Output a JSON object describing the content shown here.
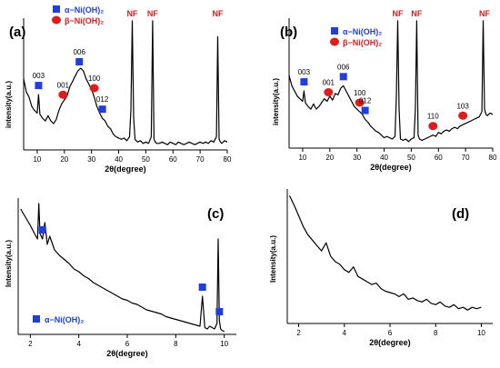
{
  "colors": {
    "alpha_marker": "#1f3de0",
    "beta_marker": "#e11b1b",
    "nf_label": "#e11b1b",
    "trace": "#000000",
    "axis": "#000000"
  },
  "chart_data": [
    {
      "panel": "(a)",
      "type": "line",
      "xlabel": "2θ(degree)",
      "ylabel": "intensity(a.u.)",
      "xlim": [
        5,
        80
      ],
      "xticks": [
        10,
        20,
        30,
        40,
        50,
        60,
        70,
        80
      ],
      "ylim": [
        0,
        100
      ],
      "yticks_shown": false,
      "legend": {
        "placement": "top-left",
        "entries": [
          {
            "marker": "square",
            "label": "α−Ni(OH)₂"
          },
          {
            "marker": "circle",
            "label": "β−Ni(OH)₂"
          }
        ]
      },
      "series": {
        "x": [
          5,
          6,
          7,
          8,
          9,
          10,
          10.5,
          11,
          12,
          13,
          14,
          15,
          16,
          17,
          18,
          19,
          20,
          21,
          22,
          23,
          24,
          25,
          26,
          27,
          28,
          29,
          30,
          31,
          32,
          33,
          34,
          35,
          36,
          37,
          38,
          39,
          40,
          41,
          42,
          43,
          44,
          44.5,
          45,
          45.5,
          46,
          47,
          48,
          49,
          50,
          51,
          52,
          52.5,
          53,
          53.5,
          54,
          55,
          56,
          57,
          58,
          59,
          60,
          61,
          62,
          63,
          64,
          65,
          66,
          67,
          68,
          69,
          70,
          71,
          72,
          73,
          74,
          75,
          76,
          76.5,
          77,
          77.5,
          78,
          79,
          80
        ],
        "y": [
          54,
          44,
          40,
          33,
          30,
          28,
          42,
          27,
          24,
          22,
          26,
          22,
          20,
          23,
          30,
          35,
          38,
          41,
          48,
          52,
          56,
          60,
          62,
          60,
          54,
          50,
          46,
          40,
          33,
          28,
          24,
          22,
          18,
          16,
          12,
          10,
          9,
          8,
          9,
          7,
          10,
          30,
          98,
          25,
          8,
          6,
          7,
          5,
          6,
          5,
          10,
          98,
          8,
          6,
          5,
          5,
          6,
          5,
          4,
          6,
          5,
          4,
          6,
          5,
          4,
          5,
          6,
          5,
          4,
          5,
          6,
          5,
          6,
          5,
          7,
          6,
          10,
          86,
          8,
          6,
          5,
          7,
          6
        ]
      },
      "annotations": [
        {
          "text": "003",
          "x": 10.5,
          "marker": "square"
        },
        {
          "text": "001",
          "x": 19.5,
          "marker": "circle"
        },
        {
          "text": "006",
          "x": 25.5,
          "marker": "square"
        },
        {
          "text": "100",
          "x": 31,
          "marker": "circle"
        },
        {
          "text": "012",
          "x": 34,
          "marker": "square"
        },
        {
          "text": "NF",
          "x": 45
        },
        {
          "text": "NF",
          "x": 52.5
        },
        {
          "text": "NF",
          "x": 76.5
        }
      ]
    },
    {
      "panel": "(b)",
      "type": "line",
      "xlabel": "2θ(degree)",
      "ylabel": "intensity(a.u.)",
      "xlim": [
        5,
        80
      ],
      "xticks": [
        10,
        20,
        30,
        40,
        50,
        60,
        70,
        80
      ],
      "ylim": [
        0,
        100
      ],
      "yticks_shown": false,
      "legend": {
        "placement": "top-center",
        "entries": [
          {
            "marker": "square",
            "label": "α−Ni(OH)₂"
          },
          {
            "marker": "circle",
            "label": "β−Ni(OH)₂"
          }
        ]
      },
      "series": {
        "x": [
          5,
          6,
          7,
          8,
          9,
          10,
          10.5,
          11,
          12,
          13,
          14,
          15,
          16,
          17,
          18,
          19,
          20,
          21,
          22,
          23,
          24,
          25,
          26,
          27,
          28,
          29,
          30,
          31,
          32,
          33,
          34,
          35,
          36,
          37,
          38,
          39,
          40,
          41,
          42,
          43,
          44,
          44.5,
          45,
          45.5,
          46,
          47,
          48,
          49,
          50,
          51,
          51.5,
          52,
          52.5,
          53,
          54,
          55,
          56,
          57,
          58,
          59,
          60,
          61,
          62,
          63,
          64,
          65,
          66,
          67,
          68,
          69,
          70,
          71,
          72,
          73,
          74,
          75,
          76,
          76.5,
          77,
          77.5,
          78,
          79,
          80
        ],
        "y": [
          56,
          48,
          44,
          40,
          38,
          36,
          44,
          35,
          32,
          30,
          34,
          30,
          32,
          35,
          38,
          36,
          40,
          37,
          42,
          41,
          46,
          48,
          44,
          40,
          36,
          32,
          30,
          28,
          26,
          22,
          20,
          17,
          15,
          13,
          12,
          10,
          8,
          9,
          8,
          7,
          9,
          40,
          98,
          30,
          7,
          6,
          7,
          5,
          7,
          8,
          30,
          98,
          10,
          7,
          6,
          7,
          8,
          9,
          10,
          9,
          12,
          11,
          13,
          14,
          13,
          15,
          16,
          15,
          17,
          18,
          19,
          20,
          21,
          22,
          23,
          24,
          28,
          98,
          30,
          26,
          25,
          27,
          26
        ]
      },
      "annotations": [
        {
          "text": "003",
          "x": 10.5,
          "marker": "square"
        },
        {
          "text": "001",
          "x": 19.5,
          "marker": "circle"
        },
        {
          "text": "006",
          "x": 25,
          "marker": "square"
        },
        {
          "text": "100",
          "x": 31,
          "marker": "circle"
        },
        {
          "text": "012",
          "x": 33,
          "marker": "square"
        },
        {
          "text": "110",
          "x": 58,
          "marker": "circle"
        },
        {
          "text": "103",
          "x": 69,
          "marker": "circle"
        },
        {
          "text": "NF",
          "x": 45
        },
        {
          "text": "NF",
          "x": 52
        },
        {
          "text": "NF",
          "x": 77
        }
      ]
    },
    {
      "panel": "(c)",
      "type": "line",
      "xlabel": "2θ(degree)",
      "ylabel": "Intensity(a.u.)",
      "xlim": [
        1.5,
        10.5
      ],
      "xticks": [
        2,
        4,
        6,
        8,
        10
      ],
      "ylim": [
        0,
        100
      ],
      "yticks_shown": false,
      "legend": {
        "placement": "bottom-left",
        "entries": [
          {
            "marker": "square",
            "label": "α−Ni(OH)₂"
          }
        ]
      },
      "series": {
        "x": [
          1.6,
          1.8,
          2.0,
          2.2,
          2.3,
          2.35,
          2.4,
          2.5,
          2.6,
          2.7,
          2.8,
          3.0,
          3.2,
          3.4,
          3.6,
          3.8,
          4.0,
          4.2,
          4.4,
          4.6,
          4.8,
          5.0,
          5.2,
          5.4,
          5.6,
          5.8,
          6.0,
          6.2,
          6.4,
          6.6,
          6.8,
          7.0,
          7.2,
          7.4,
          7.6,
          7.8,
          8.0,
          8.2,
          8.4,
          8.6,
          8.8,
          9.0,
          9.1,
          9.2,
          9.3,
          9.4,
          9.5,
          9.6,
          9.7,
          9.75,
          9.8,
          9.85,
          9.9,
          10.0
        ],
        "y": [
          92,
          86,
          80,
          73,
          70,
          96,
          74,
          70,
          82,
          66,
          72,
          62,
          58,
          55,
          52,
          48,
          46,
          43,
          41,
          38,
          36,
          34,
          32,
          30,
          28,
          26,
          25,
          23,
          22,
          20,
          18,
          17,
          16,
          15,
          13,
          12,
          11,
          10,
          9,
          8,
          7,
          6,
          28,
          5,
          4,
          6,
          5,
          4,
          8,
          70,
          10,
          4,
          3,
          2
        ]
      },
      "annotations": [
        {
          "text": "",
          "x": 2.5,
          "marker": "square"
        },
        {
          "text": "",
          "x": 9.1,
          "marker": "square"
        },
        {
          "text": "",
          "x": 9.8,
          "marker": "square"
        }
      ]
    },
    {
      "panel": "(d)",
      "type": "line",
      "xlabel": "2θ(degree)",
      "ylabel": "Intensity(a.u.)",
      "xlim": [
        1.5,
        10.5
      ],
      "xticks": [
        2,
        4,
        6,
        8,
        10
      ],
      "ylim": [
        0,
        100
      ],
      "yticks_shown": false,
      "series": {
        "x": [
          1.6,
          1.8,
          2.0,
          2.2,
          2.4,
          2.6,
          2.8,
          3.0,
          3.2,
          3.4,
          3.6,
          3.8,
          4.0,
          4.2,
          4.4,
          4.6,
          4.8,
          5.0,
          5.2,
          5.4,
          5.6,
          5.8,
          6.0,
          6.2,
          6.4,
          6.6,
          6.8,
          7.0,
          7.2,
          7.4,
          7.6,
          7.8,
          8.0,
          8.2,
          8.4,
          8.6,
          8.8,
          9.0,
          9.2,
          9.4,
          9.6,
          9.8,
          10.0
        ],
        "y": [
          95,
          88,
          80,
          72,
          66,
          62,
          58,
          54,
          60,
          50,
          46,
          44,
          40,
          38,
          42,
          35,
          33,
          31,
          29,
          30,
          26,
          24,
          23,
          22,
          20,
          22,
          18,
          19,
          17,
          16,
          18,
          15,
          14,
          16,
          13,
          12,
          14,
          11,
          12,
          10,
          12,
          11,
          12
        ]
      },
      "annotations": []
    }
  ]
}
